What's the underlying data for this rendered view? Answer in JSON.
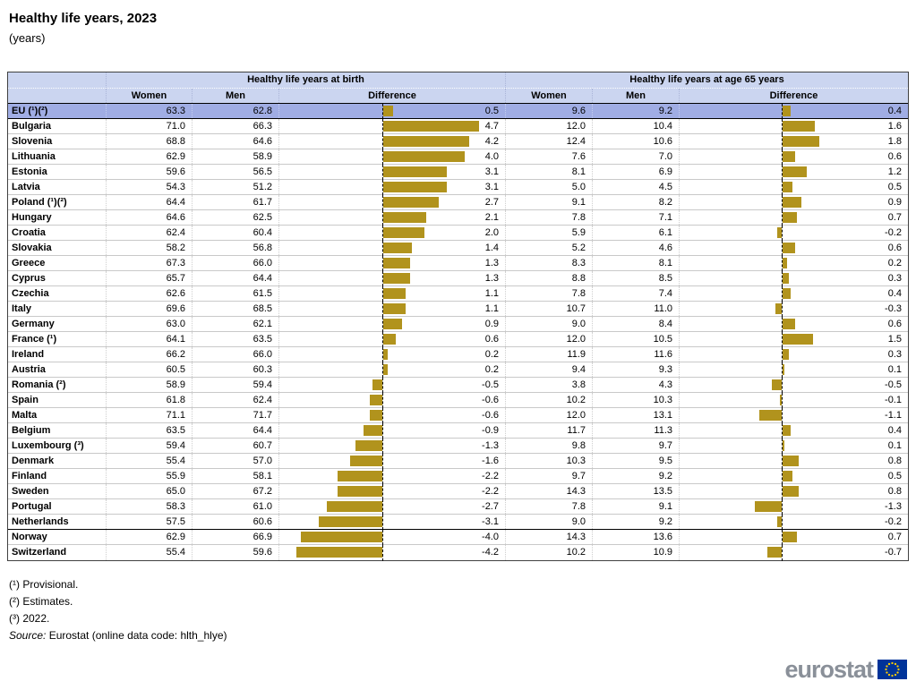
{
  "title": "Healthy life years, 2023",
  "subtitle": "(years)",
  "table": {
    "group_headers": [
      "Healthy life years at birth",
      "Healthy life years at age 65 years"
    ],
    "col_headers": [
      "Women",
      "Men",
      "Difference"
    ],
    "highlight_row_index": 0,
    "separator_after_index": 27
  },
  "chart_data": {
    "type": "table",
    "title": "Healthy life years, 2023",
    "subtitle": "(years)",
    "unit": "years",
    "bar_color": "#B1931D",
    "note": "Difference columns are rendered as horizontal bar charts around a dashed zero line; bars right of the line are positive (women higher), left negative",
    "categories": [
      "EU (¹)(²)",
      "Bulgaria",
      "Slovenia",
      "Lithuania",
      "Estonia",
      "Latvia",
      "Poland (¹)(²)",
      "Hungary",
      "Croatia",
      "Slovakia",
      "Greece",
      "Cyprus",
      "Czechia",
      "Italy",
      "Germany",
      "France (¹)",
      "Ireland",
      "Austria",
      "Romania (²)",
      "Spain",
      "Malta",
      "Belgium",
      "Luxembourg (³)",
      "Denmark",
      "Finland",
      "Sweden",
      "Portugal",
      "Netherlands",
      "Norway",
      "Switzerland"
    ],
    "series": [
      {
        "name": "Healthy life years at birth - Women",
        "values": [
          63.3,
          71.0,
          68.8,
          62.9,
          59.6,
          54.3,
          64.4,
          64.6,
          62.4,
          58.2,
          67.3,
          65.7,
          62.6,
          69.6,
          63.0,
          64.1,
          66.2,
          60.5,
          58.9,
          61.8,
          71.1,
          63.5,
          59.4,
          55.4,
          55.9,
          65.0,
          58.3,
          57.5,
          62.9,
          55.4
        ]
      },
      {
        "name": "Healthy life years at birth - Men",
        "values": [
          62.8,
          66.3,
          64.6,
          58.9,
          56.5,
          51.2,
          61.7,
          62.5,
          60.4,
          56.8,
          66.0,
          64.4,
          61.5,
          68.5,
          62.1,
          63.5,
          66.0,
          60.3,
          59.4,
          62.4,
          71.7,
          64.4,
          60.7,
          57.0,
          58.1,
          67.2,
          61.0,
          60.6,
          66.9,
          59.6
        ]
      },
      {
        "name": "Healthy life years at birth - Difference",
        "type": "bar",
        "values": [
          0.5,
          4.7,
          4.2,
          4.0,
          3.1,
          3.1,
          2.7,
          2.1,
          2.0,
          1.4,
          1.3,
          1.3,
          1.1,
          1.1,
          0.9,
          0.6,
          0.2,
          0.2,
          -0.5,
          -0.6,
          -0.6,
          -0.9,
          -1.3,
          -1.6,
          -2.2,
          -2.2,
          -2.7,
          -3.1,
          -4.0,
          -4.2
        ]
      },
      {
        "name": "Healthy life years at age 65 years - Women",
        "values": [
          9.6,
          12.0,
          12.4,
          7.6,
          8.1,
          5.0,
          9.1,
          7.8,
          5.9,
          5.2,
          8.3,
          8.8,
          7.8,
          10.7,
          9.0,
          12.0,
          11.9,
          9.4,
          3.8,
          10.2,
          12.0,
          11.7,
          9.8,
          10.3,
          9.7,
          14.3,
          7.8,
          9.0,
          14.3,
          10.2
        ]
      },
      {
        "name": "Healthy life years at age 65 years - Men",
        "values": [
          9.2,
          10.4,
          10.6,
          7.0,
          6.9,
          4.5,
          8.2,
          7.1,
          6.1,
          4.6,
          8.1,
          8.5,
          7.4,
          11.0,
          8.4,
          10.5,
          11.6,
          9.3,
          4.3,
          10.3,
          13.1,
          11.3,
          9.7,
          9.5,
          9.2,
          13.5,
          9.1,
          9.2,
          13.6,
          10.9
        ]
      },
      {
        "name": "Healthy life years at age 65 years - Difference",
        "type": "bar",
        "values": [
          0.4,
          1.6,
          1.8,
          0.6,
          1.2,
          0.5,
          0.9,
          0.7,
          -0.2,
          0.6,
          0.2,
          0.3,
          0.4,
          -0.3,
          0.6,
          1.5,
          0.3,
          0.1,
          -0.5,
          -0.1,
          -1.1,
          0.4,
          0.1,
          0.8,
          0.5,
          0.8,
          -1.3,
          -0.2,
          0.7,
          -0.7
        ]
      }
    ]
  },
  "footnotes": [
    "(¹) Provisional.",
    "(²) Estimates.",
    "(³) 2022."
  ],
  "source": {
    "label": "Source:",
    "text": " Eurostat (online data code: hlth_hlye)"
  },
  "logo": {
    "text": "eurostat",
    "flag_blue": "#003399",
    "star_yellow": "#FFCC00"
  },
  "colors": {
    "header_bg": "#CBD5F0",
    "eu_row_bg": "#A0ADE4",
    "bar_gold": "#B1931D",
    "gridline": "#C9C9C9"
  }
}
